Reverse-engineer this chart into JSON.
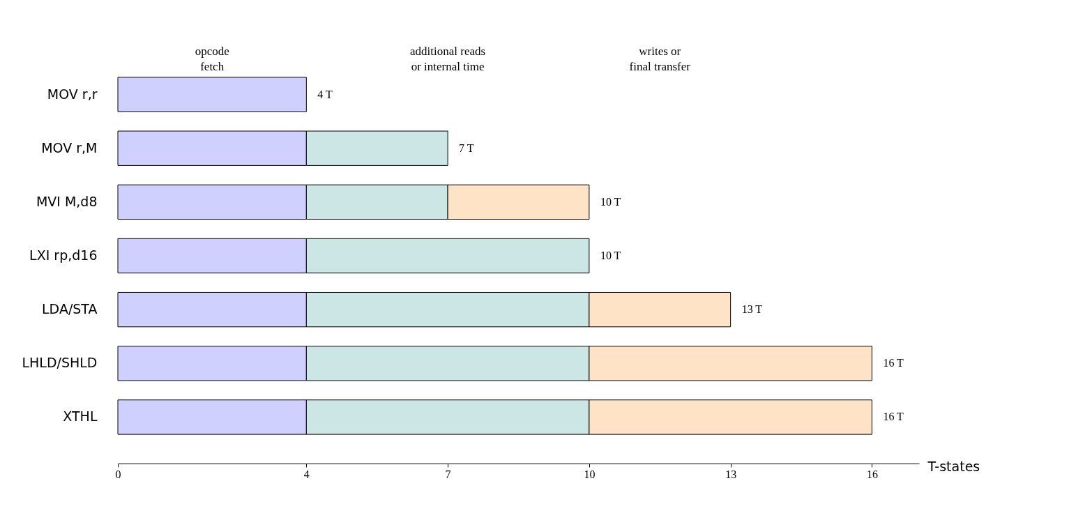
{
  "chart_data": {
    "type": "bar",
    "orientation": "horizontal",
    "stacked": true,
    "categories": [
      "MOV r,r",
      "MOV r,M",
      "MVI M,d8",
      "LXI rp,d16",
      "LDA/STA",
      "LHLD/SHLD",
      "XTHL"
    ],
    "series": [
      {
        "color": "#d0d0ff",
        "values": [
          4,
          4,
          4,
          4,
          4,
          4,
          4
        ]
      },
      {
        "color": "#cce6e6",
        "values": [
          null,
          3,
          3,
          6,
          6,
          6,
          6
        ]
      },
      {
        "color": "#ffe3c7",
        "values": [
          null,
          null,
          3,
          null,
          3,
          6,
          6
        ]
      }
    ],
    "annotations": [
      "opcode\nfetch",
      "additional reads\nor internal time",
      "writes or\nfinal transfer"
    ],
    "totals": [
      "4 T",
      "7 T",
      "10 T",
      "10 T",
      "13 T",
      "16 T",
      "16 T"
    ],
    "xlabel": "T-states",
    "xlim": [
      0,
      17
    ],
    "xticks": [
      0,
      4,
      7,
      10,
      13,
      16
    ],
    "grid": false,
    "legend": false
  }
}
